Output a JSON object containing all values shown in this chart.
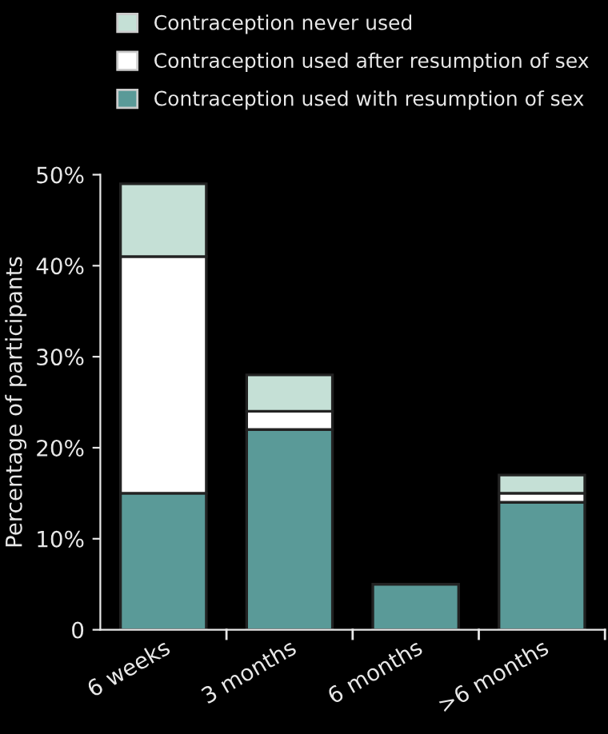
{
  "chart_data": {
    "type": "bar",
    "stacked": true,
    "ylabel": "Percentage of participants",
    "categories": [
      "6 weeks",
      "3 months",
      "6 months",
      ">6 months"
    ],
    "series": [
      {
        "name": "Contraception used with resumption of sex",
        "color": "#5a9a98",
        "values": [
          15,
          22,
          5,
          14
        ]
      },
      {
        "name": "Contraception used after resumption of sex",
        "color": "#ffffff",
        "values": [
          26,
          2,
          null,
          1
        ]
      },
      {
        "name": "Contraception never used",
        "color": "#c5e0d6",
        "values": [
          8,
          4,
          null,
          2
        ]
      }
    ],
    "ylim": [
      0,
      50
    ],
    "yticks": [
      {
        "value": 0,
        "label": "0"
      },
      {
        "value": 10,
        "label": "10%"
      },
      {
        "value": 20,
        "label": "20%"
      },
      {
        "value": 30,
        "label": "30%"
      },
      {
        "value": 40,
        "label": "40%"
      },
      {
        "value": 50,
        "label": "50%"
      }
    ],
    "grid": false,
    "legend": "top"
  }
}
